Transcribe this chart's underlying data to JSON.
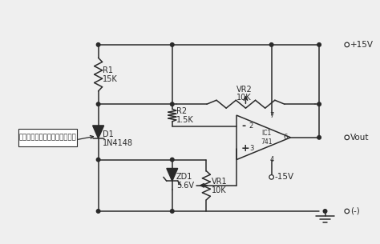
{
  "bg_color": "#efefef",
  "line_color": "#2a2a2a",
  "label_box_text": "ใช้วัดอุณหภูมิ",
  "vcc": "+15V",
  "vee": "-15V",
  "vout": "Vout",
  "gnd": "(-)",
  "R1_label": "R1",
  "R1_val": "15K",
  "R2_label": "R2",
  "R2_val": "1.5K",
  "VR1_label": "VR1",
  "VR1_val": "10K",
  "VR2_label": "VR2",
  "VR2_val": "10K",
  "D1_label": "D1",
  "D1_val": "1N4148",
  "ZD1_label": "ZD1",
  "ZD1_val": "5.6V",
  "IC1_label": "IC1",
  "IC1_val": "741"
}
